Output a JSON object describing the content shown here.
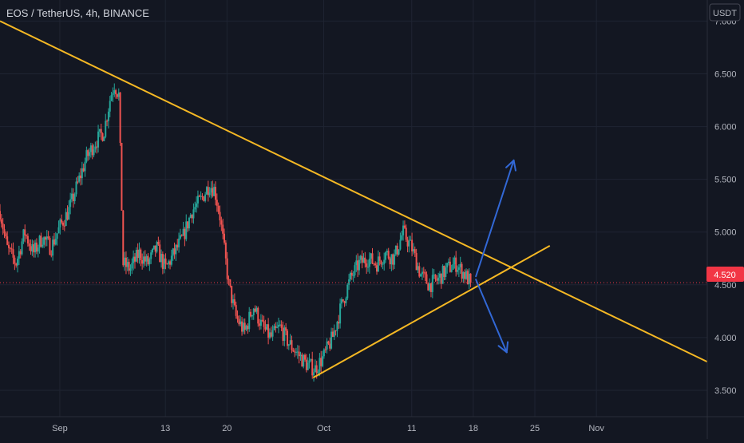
{
  "symbol_title": "EOS / TetherUS, 4h, BINANCE",
  "currency_badge": "USDT",
  "price_label": "4.520",
  "colors": {
    "background": "#131722",
    "grid": "#1f2432",
    "text": "#b2b5be",
    "up": "#26a69a",
    "down": "#ef5350",
    "trendline": "#f5b824",
    "arrow": "#3268d6",
    "price_badge": "#f23645"
  },
  "chart_data": {
    "type": "candlestick",
    "symbol": "EOS / TetherUS",
    "interval": "4h",
    "exchange": "BINANCE",
    "current_price": 4.52,
    "y_ticks": [
      "7.000",
      "6.500",
      "6.000",
      "5.500",
      "5.000",
      "4.500",
      "4.000",
      "3.500"
    ],
    "ylim": [
      3.25,
      7.2
    ],
    "x_ticks": [
      "Sep",
      "13",
      "20",
      "Oct",
      "11",
      "18",
      "25",
      "Nov"
    ],
    "x_tick_days": [
      0,
      12,
      19,
      30,
      40,
      47,
      54,
      61
    ],
    "xlim": [
      -6.8,
      73.6
    ],
    "price_path": [
      [
        -6.8,
        5.2
      ],
      [
        -6,
        4.85
      ],
      [
        -5,
        4.7
      ],
      [
        -4,
        5.0
      ],
      [
        -3,
        4.8
      ],
      [
        -2,
        4.95
      ],
      [
        -1,
        4.85
      ],
      [
        0,
        5.05
      ],
      [
        1,
        5.2
      ],
      [
        2,
        5.45
      ],
      [
        3,
        5.7
      ],
      [
        4,
        5.85
      ],
      [
        5,
        5.95
      ],
      [
        5.8,
        6.3
      ],
      [
        6.2,
        6.4
      ],
      [
        6.7,
        6.3
      ],
      [
        7.2,
        4.7
      ],
      [
        8,
        4.65
      ],
      [
        9,
        4.8
      ],
      [
        10,
        4.7
      ],
      [
        11,
        4.85
      ],
      [
        12,
        4.65
      ],
      [
        13,
        4.8
      ],
      [
        14,
        4.95
      ],
      [
        15,
        5.2
      ],
      [
        16,
        5.3
      ],
      [
        17,
        5.45
      ],
      [
        17.6,
        5.4
      ],
      [
        18.2,
        5.15
      ],
      [
        19.2,
        4.5
      ],
      [
        20,
        4.2
      ],
      [
        21,
        4.05
      ],
      [
        22,
        4.3
      ],
      [
        23,
        4.1
      ],
      [
        24,
        4.0
      ],
      [
        25,
        4.1
      ],
      [
        26,
        3.95
      ],
      [
        27,
        3.85
      ],
      [
        28,
        3.75
      ],
      [
        29,
        3.7
      ],
      [
        30,
        3.82
      ],
      [
        31,
        4.0
      ],
      [
        32,
        4.3
      ],
      [
        33,
        4.55
      ],
      [
        34,
        4.7
      ],
      [
        35,
        4.75
      ],
      [
        36,
        4.7
      ],
      [
        37,
        4.8
      ],
      [
        38,
        4.75
      ],
      [
        39,
        5.0
      ],
      [
        40,
        4.85
      ],
      [
        41,
        4.6
      ],
      [
        42,
        4.5
      ],
      [
        43,
        4.55
      ],
      [
        44,
        4.65
      ],
      [
        45,
        4.7
      ],
      [
        46,
        4.6
      ],
      [
        46.7,
        4.52
      ]
    ],
    "annotations": [
      {
        "type": "trendline",
        "label": "descending resistance",
        "from": [
          -6.8,
          7.0
        ],
        "to": [
          73.6,
          3.77
        ]
      },
      {
        "type": "trendline",
        "label": "ascending support",
        "from": [
          28.8,
          3.62
        ],
        "to": [
          55.7,
          4.87
        ]
      },
      {
        "type": "arrow",
        "label": "bullish scenario",
        "from": [
          47.3,
          4.58
        ],
        "to": [
          51.6,
          5.68
        ]
      },
      {
        "type": "arrow",
        "label": "bearish scenario",
        "from": [
          47.3,
          4.55
        ],
        "to": [
          50.8,
          3.86
        ]
      },
      {
        "type": "hline",
        "label": "current price",
        "value": 4.52
      }
    ]
  }
}
